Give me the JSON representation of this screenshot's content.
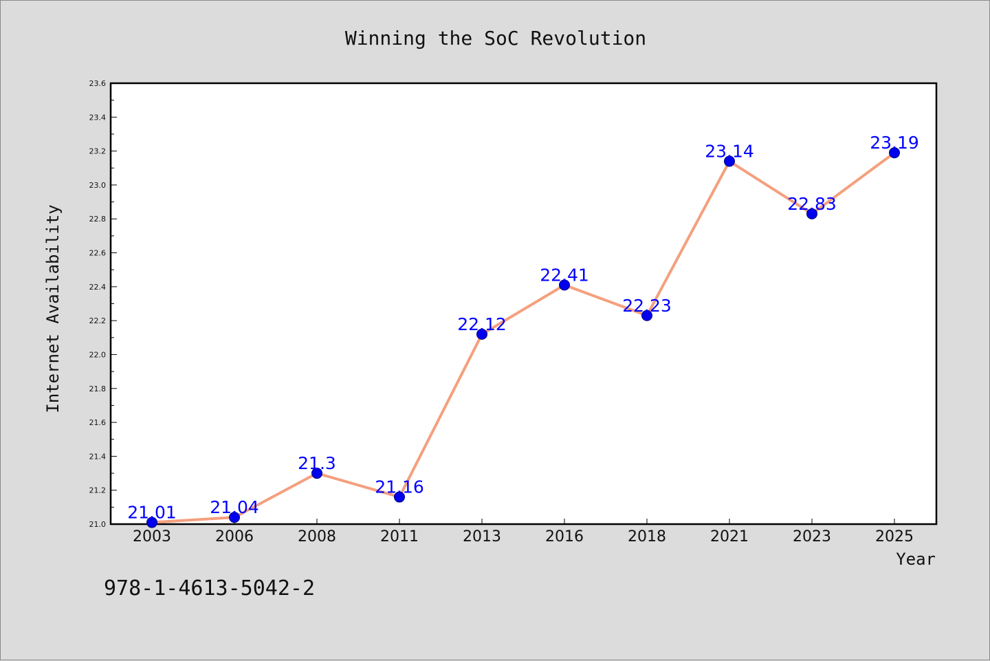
{
  "chart_data": {
    "type": "line",
    "title": "Winning the SoC Revolution",
    "xlabel": "Year",
    "ylabel": "Internet Availability",
    "categories": [
      "2003",
      "2006",
      "2008",
      "2011",
      "2013",
      "2016",
      "2018",
      "2021",
      "2023",
      "2025"
    ],
    "series": [
      {
        "values": [
          21.01,
          21.04,
          21.3,
          21.16,
          22.12,
          22.41,
          22.23,
          23.14,
          22.83,
          23.19
        ],
        "labels": [
          "21.01",
          "21.04",
          "21.3",
          "21.16",
          "22.12",
          "22.41",
          "22.23",
          "23.14",
          "22.83",
          "23.19"
        ],
        "line_color": "#f4a07e",
        "marker_color": "#0000ee"
      }
    ],
    "ylim": [
      21.0,
      23.6
    ],
    "yticks": [
      "21.0",
      "21.2",
      "21.4",
      "21.6",
      "21.8",
      "22.0",
      "22.2",
      "22.4",
      "22.6",
      "22.8",
      "23.0",
      "23.2",
      "23.4",
      "23.6"
    ],
    "grid": false,
    "legend": "none"
  },
  "footer": {
    "text": "978-1-4613-5042-2"
  }
}
